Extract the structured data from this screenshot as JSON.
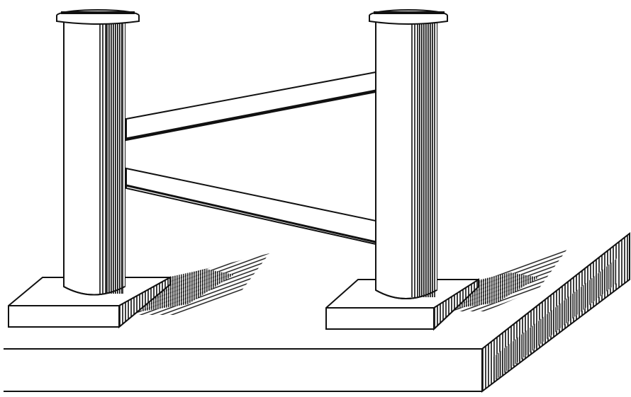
{
  "image": {
    "caption": "",
    "colors": {
      "ink": "#111111",
      "paper": "#ffffff"
    }
  }
}
